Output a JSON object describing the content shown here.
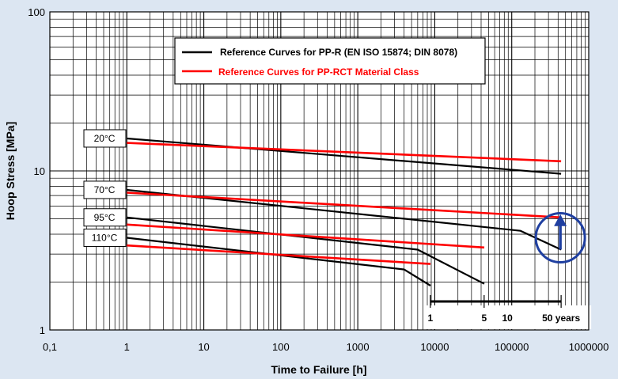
{
  "chart_data": {
    "type": "line",
    "title": "",
    "xlabel": "Time to Failure [h]",
    "ylabel": "Hoop Stress [MPa]",
    "xscale": "log",
    "yscale": "log",
    "xlim": [
      0.1,
      1000000
    ],
    "ylim": [
      1,
      100
    ],
    "grid": true,
    "x_tick_labels": [
      "0,1",
      "1",
      "10",
      "100",
      "1000",
      "10000",
      "100000",
      "1000000"
    ],
    "y_tick_labels": [
      {
        "value": 1,
        "label": "1"
      },
      {
        "value": 10,
        "label": "10"
      },
      {
        "value": 100,
        "label": "100"
      }
    ],
    "legend_position": "top-center",
    "legend": [
      {
        "label": "Reference Curves for PP-R (EN ISO 15874; DIN 8078)",
        "color": "#000000"
      },
      {
        "label": "Reference Curves for PP-RCT Material Class",
        "color": "#ff0000"
      }
    ],
    "series": [
      {
        "group": "PP-R",
        "temperature": "20°C",
        "color": "#000000",
        "points": [
          [
            1,
            16.0
          ],
          [
            438000,
            9.6
          ]
        ]
      },
      {
        "group": "PP-R",
        "temperature": "70°C",
        "color": "#000000",
        "points": [
          [
            1,
            7.6
          ],
          [
            130000,
            4.2
          ],
          [
            438000,
            3.2
          ]
        ]
      },
      {
        "group": "PP-R",
        "temperature": "95°C",
        "color": "#000000",
        "points": [
          [
            1,
            5.1
          ],
          [
            6000,
            3.2
          ],
          [
            44000,
            1.95
          ]
        ]
      },
      {
        "group": "PP-R",
        "temperature": "110°C",
        "color": "#000000",
        "points": [
          [
            1,
            3.8
          ],
          [
            4000,
            2.4
          ],
          [
            8800,
            1.9
          ]
        ]
      },
      {
        "group": "PP-RCT",
        "temperature": "20°C",
        "color": "#ff0000",
        "points": [
          [
            1,
            15.0
          ],
          [
            438000,
            11.5
          ]
        ]
      },
      {
        "group": "PP-RCT",
        "temperature": "70°C",
        "color": "#ff0000",
        "points": [
          [
            1,
            7.3
          ],
          [
            438000,
            5.1
          ]
        ]
      },
      {
        "group": "PP-RCT",
        "temperature": "95°C",
        "color": "#ff0000",
        "points": [
          [
            1,
            4.6
          ],
          [
            44000,
            3.3
          ]
        ]
      },
      {
        "group": "PP-RCT",
        "temperature": "110°C",
        "color": "#ff0000",
        "points": [
          [
            1,
            3.4
          ],
          [
            8800,
            2.6
          ]
        ]
      }
    ],
    "temperature_labels": [
      {
        "label": "20°C",
        "y": 16.0
      },
      {
        "label": "70°C",
        "y": 7.6
      },
      {
        "label": "95°C",
        "y": 5.1
      },
      {
        "label": "110°C",
        "y": 3.8
      }
    ],
    "years_scale": {
      "labels": [
        {
          "label": "1",
          "hours": 8760
        },
        {
          "label": "5",
          "hours": 43800
        },
        {
          "label": "10",
          "hours": 87600
        },
        {
          "label": "50 years",
          "hours": 438000
        }
      ],
      "markers_hours": [
        8760,
        43800,
        438000
      ],
      "range_hours": [
        8760,
        438000
      ]
    },
    "highlight": {
      "shape": "circle",
      "color": "#1f3fa0",
      "center": [
        438000,
        3.8
      ],
      "arrow_from": [
        438000,
        3.2
      ],
      "arrow_to": [
        438000,
        5.1
      ]
    }
  }
}
